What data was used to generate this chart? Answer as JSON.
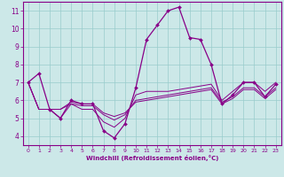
{
  "xlabel": "Windchill (Refroidissement éolien,°C)",
  "background_color": "#cce8e8",
  "line_color": "#880088",
  "grid_color": "#99cccc",
  "xlim": [
    -0.5,
    23.5
  ],
  "ylim": [
    3.5,
    11.5
  ],
  "xticks": [
    0,
    1,
    2,
    3,
    4,
    5,
    6,
    7,
    8,
    9,
    10,
    11,
    12,
    13,
    14,
    15,
    16,
    17,
    18,
    19,
    20,
    21,
    22,
    23
  ],
  "yticks": [
    4,
    5,
    6,
    7,
    8,
    9,
    10,
    11
  ],
  "line_main": [
    7.0,
    7.5,
    5.5,
    5.0,
    6.0,
    5.8,
    5.8,
    4.3,
    3.9,
    4.7,
    6.7,
    9.4,
    10.2,
    11.0,
    11.2,
    9.5,
    9.4,
    8.0,
    5.8,
    6.3,
    7.0,
    7.0,
    6.2,
    6.9
  ],
  "line2": [
    7.0,
    5.5,
    5.5,
    5.0,
    5.8,
    5.5,
    5.5,
    4.8,
    4.5,
    5.0,
    6.3,
    6.5,
    6.5,
    6.5,
    6.6,
    6.7,
    6.8,
    6.9,
    6.0,
    6.5,
    7.0,
    7.0,
    6.5,
    7.0
  ],
  "line3": [
    7.0,
    5.5,
    5.5,
    5.5,
    5.8,
    5.7,
    5.7,
    5.2,
    4.9,
    5.2,
    6.0,
    6.1,
    6.2,
    6.3,
    6.4,
    6.5,
    6.6,
    6.7,
    5.9,
    6.2,
    6.7,
    6.7,
    6.2,
    6.7
  ],
  "line4": [
    7.0,
    5.5,
    5.5,
    5.5,
    5.9,
    5.8,
    5.8,
    5.3,
    5.1,
    5.3,
    5.9,
    6.0,
    6.1,
    6.2,
    6.3,
    6.4,
    6.5,
    6.6,
    5.8,
    6.1,
    6.6,
    6.6,
    6.1,
    6.6
  ]
}
